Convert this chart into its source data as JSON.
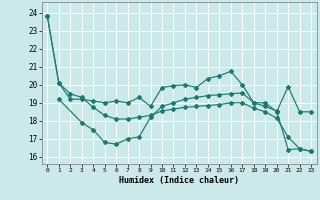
{
  "xlabel": "Humidex (Indice chaleur)",
  "xlim": [
    -0.5,
    23.5
  ],
  "ylim": [
    15.6,
    24.6
  ],
  "yticks": [
    16,
    17,
    18,
    19,
    20,
    21,
    22,
    23,
    24
  ],
  "xticks": [
    0,
    1,
    2,
    3,
    4,
    5,
    6,
    7,
    8,
    9,
    10,
    11,
    12,
    13,
    14,
    15,
    16,
    17,
    18,
    19,
    20,
    21,
    22,
    23
  ],
  "bg_color": "#cce9ea",
  "grid_color": "#ffffff",
  "line_color": "#1a7a6e",
  "line1_x": [
    0,
    1,
    2,
    3,
    4,
    5,
    6,
    7,
    8,
    9,
    10,
    11,
    12,
    13,
    14,
    15,
    16,
    17,
    18,
    19,
    20,
    21,
    22,
    23
  ],
  "line1_y": [
    23.8,
    20.1,
    19.2,
    19.2,
    19.1,
    19.0,
    19.1,
    19.0,
    19.3,
    18.8,
    19.85,
    19.95,
    20.0,
    19.85,
    20.35,
    20.5,
    20.75,
    20.0,
    19.0,
    19.0,
    18.5,
    19.9,
    18.5,
    18.5
  ],
  "line2_x": [
    1,
    3,
    4,
    5,
    6,
    7,
    8,
    9,
    10,
    11,
    12,
    13,
    14,
    15,
    16,
    17,
    18,
    19,
    20,
    21,
    22,
    23
  ],
  "line2_y": [
    19.2,
    17.9,
    17.5,
    16.8,
    16.7,
    17.0,
    17.1,
    18.2,
    18.8,
    19.0,
    19.2,
    19.3,
    19.4,
    19.45,
    19.5,
    19.55,
    19.0,
    18.8,
    18.55,
    16.4,
    16.45,
    16.3
  ],
  "line3_x": [
    0,
    1,
    2,
    3,
    4,
    5,
    6,
    7,
    8,
    9,
    10,
    11,
    12,
    13,
    14,
    15,
    16,
    17,
    18,
    19,
    20,
    21,
    22,
    23
  ],
  "line3_y": [
    23.8,
    20.1,
    19.5,
    19.3,
    18.75,
    18.3,
    18.1,
    18.1,
    18.2,
    18.3,
    18.55,
    18.65,
    18.75,
    18.8,
    18.85,
    18.9,
    19.0,
    19.0,
    18.7,
    18.5,
    18.15,
    17.1,
    16.45,
    16.3
  ]
}
